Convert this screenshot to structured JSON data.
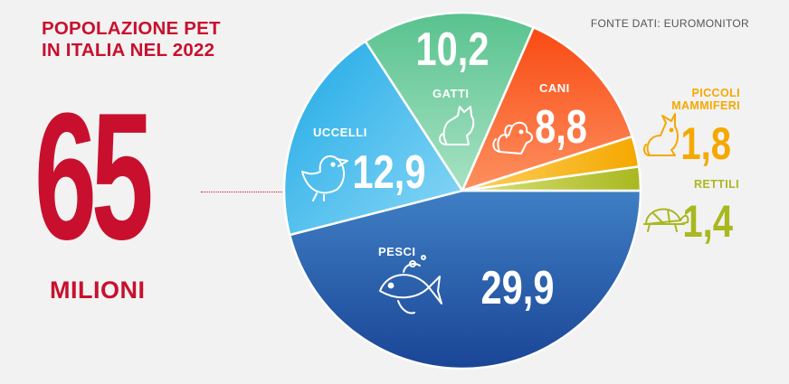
{
  "header": {
    "title_line1": "POPOLAZIONE PET",
    "title_line2": "IN ITALIA NEL 2022",
    "source": "FONTE DATI: EUROMONITOR"
  },
  "total": {
    "value": "65",
    "unit": "MILIONI"
  },
  "chart_data": {
    "type": "pie",
    "unit": "milioni",
    "title": "POPOLAZIONE PET IN ITALIA NEL 2022",
    "slices": [
      {
        "label": "PESCI",
        "value": 29.9,
        "display": "29,9",
        "color": "#2c5ea8",
        "icon": "fish-icon"
      },
      {
        "label": "UCCELLI",
        "value": 12.9,
        "display": "12,9",
        "color": "#3cbcea",
        "icon": "bird-icon"
      },
      {
        "label": "GATTI",
        "value": 10.2,
        "display": "10,2",
        "color": "#66c99a",
        "icon": "cat-icon"
      },
      {
        "label": "CANI",
        "value": 8.8,
        "display": "8,8",
        "color": "#fb5a1e",
        "icon": "dog-icon"
      },
      {
        "label": "PICCOLI MAMMIFERI",
        "value": 1.8,
        "display": "1,8",
        "color": "#fbb414",
        "icon": "rabbit-icon"
      },
      {
        "label": "RETTILI",
        "value": 1.4,
        "display": "1,4",
        "color": "#b8c43a",
        "icon": "turtle-icon"
      }
    ],
    "label_colors": {
      "PICCOLI MAMMIFERI": "#f5a800",
      "RETTILI": "#a9b820"
    }
  }
}
